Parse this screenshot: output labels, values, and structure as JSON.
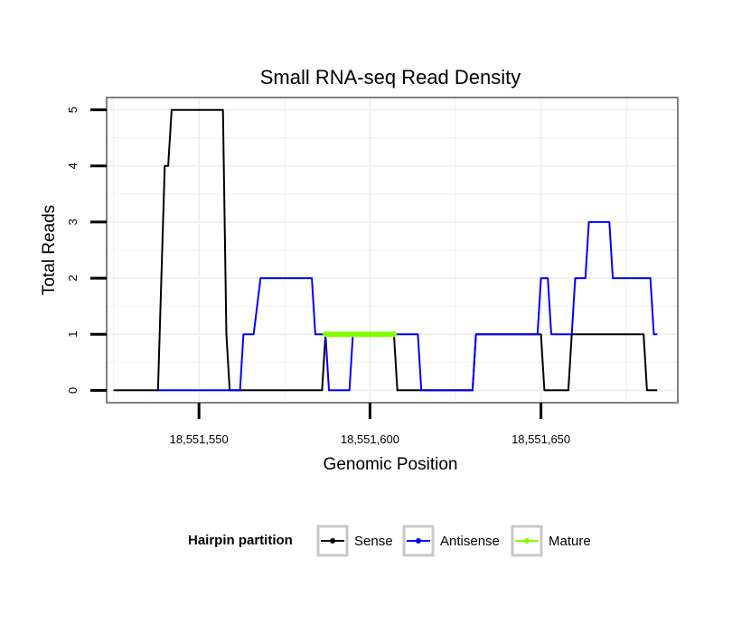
{
  "chart_data": {
    "type": "line",
    "title": "Small RNA-seq Read Density",
    "xlabel": "Genomic Position",
    "ylabel": "Total Reads",
    "xlim": [
      18551523,
      18551690
    ],
    "ylim": [
      -0.22,
      5.22
    ],
    "x_ticks": [
      18551550,
      18551600,
      18551650
    ],
    "x_tick_labels": [
      "18,551,550",
      "18,551,600",
      "18,551,650"
    ],
    "y_ticks": [
      0,
      1,
      2,
      3,
      4,
      5
    ],
    "y_tick_labels": [
      "0",
      "1",
      "2",
      "3",
      "4",
      "5"
    ],
    "grid": true,
    "legend": {
      "title": "Hairpin partition",
      "position": "bottom",
      "entries": [
        "Sense",
        "Antisense",
        "Mature"
      ]
    },
    "series": [
      {
        "name": "Sense",
        "color": "#000000",
        "x": [
          18551525,
          18551538,
          18551540,
          18551541,
          18551542,
          18551557,
          18551558,
          18551559,
          18551586,
          18551587,
          18551607,
          18551608,
          18551630,
          18551631,
          18551650,
          18551651,
          18551658,
          18551659,
          18551680,
          18551681,
          18551684
        ],
        "y": [
          0,
          0,
          4,
          4,
          5,
          5,
          1,
          0,
          0,
          1,
          1,
          0,
          0,
          1,
          1,
          0,
          0,
          1,
          1,
          0,
          0
        ]
      },
      {
        "name": "Antisense",
        "color": "#0000ff",
        "x": [
          18551538,
          18551560,
          18551562,
          18551563,
          18551564,
          18551566,
          18551568,
          18551583,
          18551584,
          18551587,
          18551588,
          18551594,
          18551595,
          18551614,
          18551615,
          18551616,
          18551630,
          18551631,
          18551649,
          18551650,
          18551652,
          18551653,
          18551659,
          18551660,
          18551663,
          18551664,
          18551670,
          18551671,
          18551682,
          18551683,
          18551684
        ],
        "y": [
          0,
          0,
          0,
          1,
          1,
          1,
          2,
          2,
          1,
          1,
          0,
          0,
          1,
          1,
          0,
          0,
          0,
          1,
          1,
          2,
          2,
          1,
          1,
          2,
          2,
          3,
          3,
          2,
          2,
          1,
          1
        ]
      },
      {
        "name": "Mature",
        "color": "#7fff00",
        "x": [
          18551587,
          18551588,
          18551589,
          18551590,
          18551591,
          18551592,
          18551593,
          18551594,
          18551595,
          18551596,
          18551597,
          18551598,
          18551599,
          18551600,
          18551601,
          18551602,
          18551603,
          18551604,
          18551605,
          18551606,
          18551607
        ],
        "y": [
          1,
          1,
          1,
          1,
          1,
          1,
          1,
          1,
          1,
          1,
          1,
          1,
          1,
          1,
          1,
          1,
          1,
          1,
          1,
          1,
          1
        ]
      }
    ]
  }
}
